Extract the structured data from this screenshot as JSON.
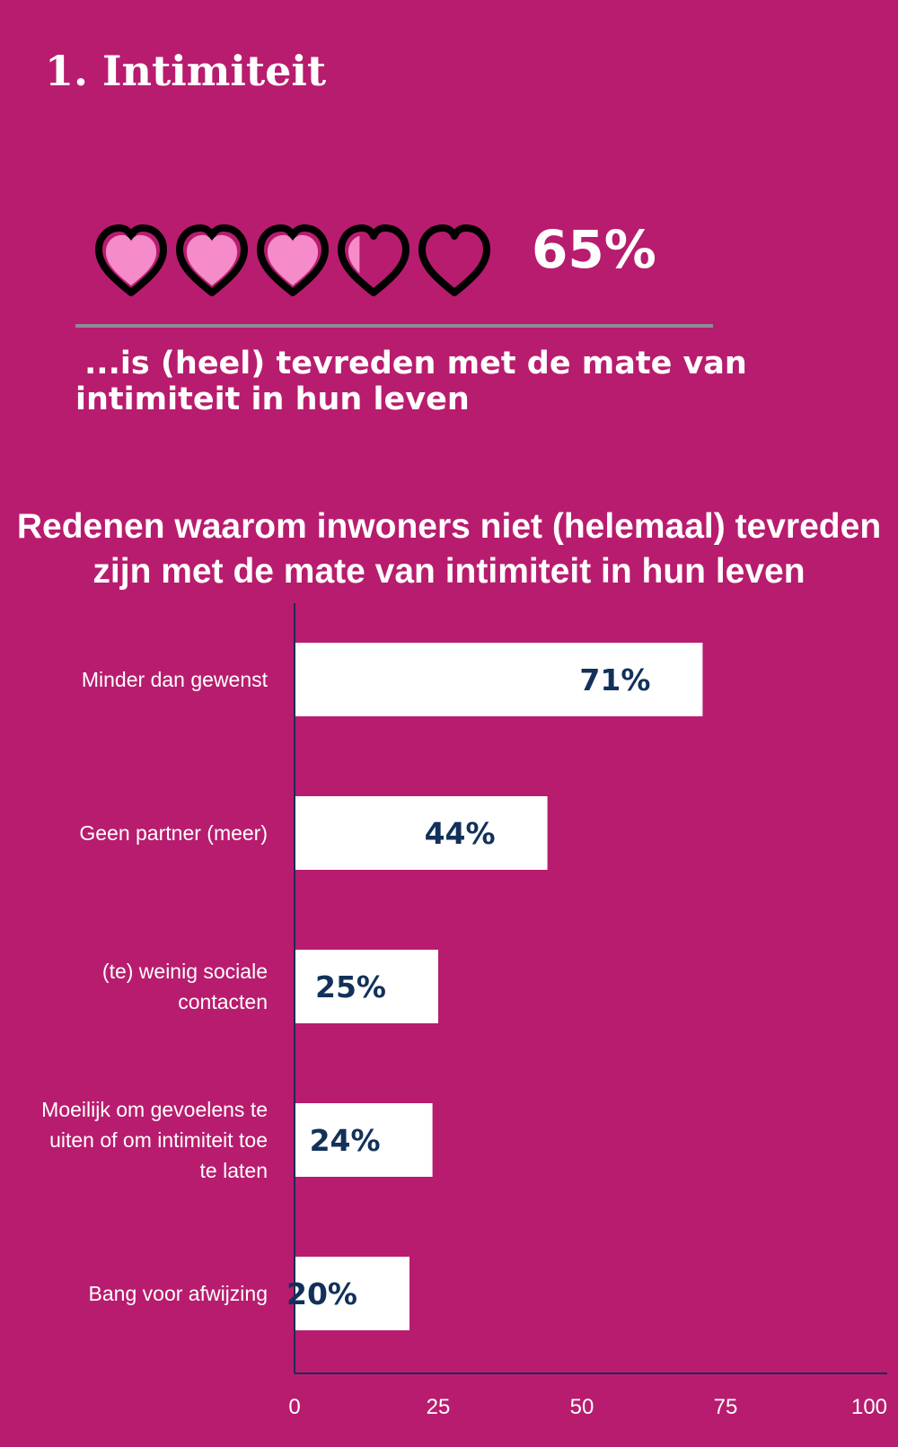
{
  "section_title": "1. Intimiteit",
  "headline": {
    "value": "65%",
    "fraction": 0.65,
    "hearts_total": 5,
    "heart_fill_color": "#F58BC9",
    "heart_outline_color": "#000000",
    "text": "...is (heel) tevreden met de mate van intimiteit in hun leven"
  },
  "colors": {
    "background": "#B81C6E",
    "bar": "#FFFFFF",
    "value_text": "#12315A",
    "axis": "#1E2A5A",
    "divider": "#8E8A96"
  },
  "chart_data": {
    "type": "bar",
    "orientation": "horizontal",
    "title": "Redenen waarom inwoners niet (helemaal) tevreden zijn met de mate van intimiteit in hun leven",
    "categories": [
      [
        "Minder dan gewenst"
      ],
      [
        "Geen partner (meer)"
      ],
      [
        "(te) weinig sociale",
        "contacten"
      ],
      [
        "Moeilijk om gevoelens te",
        "uiten of om intimiteit toe",
        "te laten"
      ],
      [
        "Bang voor afwijzing"
      ]
    ],
    "values": [
      71,
      44,
      25,
      24,
      20
    ],
    "value_labels": [
      "71%",
      "44%",
      "25%",
      "24%",
      "20%"
    ],
    "xlim": [
      0,
      100
    ],
    "xticks": [
      "0",
      "25",
      "50",
      "75",
      "100"
    ],
    "grid": false
  }
}
